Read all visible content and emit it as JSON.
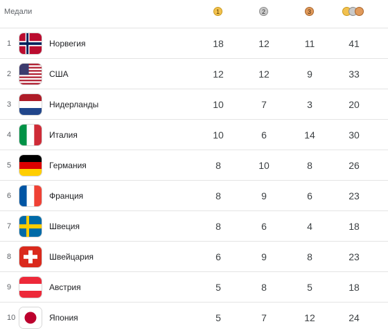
{
  "header": {
    "title": "Медали",
    "gold_label": "1",
    "silver_label": "2",
    "bronze_label": "3"
  },
  "colors": {
    "gold": "#f2c14e",
    "silver": "#c9c9c9",
    "bronze": "#e09a5b"
  },
  "rows": [
    {
      "rank": "1",
      "country": "Норвегия",
      "flag": "norway-flag-icon",
      "gold": "18",
      "silver": "12",
      "bronze": "11",
      "total": "41"
    },
    {
      "rank": "2",
      "country": "США",
      "flag": "usa-flag-icon",
      "gold": "12",
      "silver": "12",
      "bronze": "9",
      "total": "33"
    },
    {
      "rank": "3",
      "country": "Нидерланды",
      "flag": "netherlands-flag-icon",
      "gold": "10",
      "silver": "7",
      "bronze": "3",
      "total": "20"
    },
    {
      "rank": "4",
      "country": "Италия",
      "flag": "italy-flag-icon",
      "gold": "10",
      "silver": "6",
      "bronze": "14",
      "total": "30"
    },
    {
      "rank": "5",
      "country": "Германия",
      "flag": "germany-flag-icon",
      "gold": "8",
      "silver": "10",
      "bronze": "8",
      "total": "26"
    },
    {
      "rank": "6",
      "country": "Франция",
      "flag": "france-flag-icon",
      "gold": "8",
      "silver": "9",
      "bronze": "6",
      "total": "23"
    },
    {
      "rank": "7",
      "country": "Швеция",
      "flag": "sweden-flag-icon",
      "gold": "8",
      "silver": "6",
      "bronze": "4",
      "total": "18"
    },
    {
      "rank": "8",
      "country": "Швейцария",
      "flag": "switzerland-flag-icon",
      "gold": "6",
      "silver": "9",
      "bronze": "8",
      "total": "23"
    },
    {
      "rank": "9",
      "country": "Австрия",
      "flag": "austria-flag-icon",
      "gold": "5",
      "silver": "8",
      "bronze": "5",
      "total": "18"
    },
    {
      "rank": "10",
      "country": "Япония",
      "flag": "japan-flag-icon",
      "gold": "5",
      "silver": "7",
      "bronze": "12",
      "total": "24"
    }
  ]
}
